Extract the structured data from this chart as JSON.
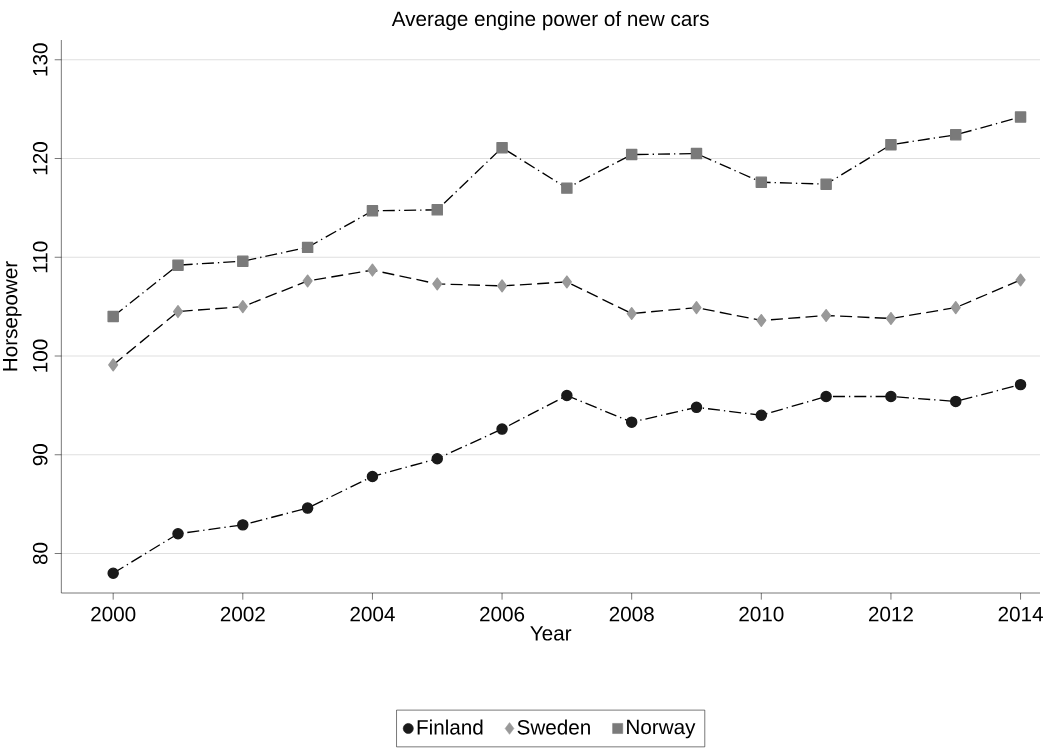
{
  "chart_data": {
    "type": "line",
    "title": "Average engine power of new cars",
    "xlabel": "Year",
    "ylabel": "Horsepower",
    "x": [
      2000,
      2001,
      2002,
      2003,
      2004,
      2005,
      2006,
      2007,
      2008,
      2009,
      2010,
      2011,
      2012,
      2013,
      2014
    ],
    "series": [
      {
        "name": "Finland",
        "color": "#1a1a1a",
        "marker": "circle",
        "line_style": "dashdot",
        "values": [
          78.0,
          82.0,
          82.9,
          84.6,
          87.8,
          89.6,
          92.6,
          96.0,
          93.3,
          94.8,
          94.0,
          95.9,
          95.9,
          95.4,
          97.1
        ]
      },
      {
        "name": "Sweden",
        "color": "#999999",
        "marker": "diamond",
        "line_style": "dashed",
        "values": [
          99.1,
          104.5,
          105.0,
          107.6,
          108.7,
          107.3,
          107.1,
          107.5,
          104.3,
          104.9,
          103.6,
          104.1,
          103.8,
          104.9,
          107.7
        ]
      },
      {
        "name": "Norway",
        "color": "#7a7a7a",
        "marker": "square",
        "line_style": "dashdot",
        "values": [
          104.0,
          109.2,
          109.6,
          111.0,
          114.7,
          114.8,
          121.1,
          117.0,
          120.4,
          120.5,
          117.6,
          117.4,
          121.4,
          122.4,
          124.2
        ]
      }
    ],
    "xlim": [
      1999.2,
      2014.3
    ],
    "ylim": [
      76,
      132
    ],
    "xticks": [
      2000,
      2002,
      2004,
      2006,
      2008,
      2010,
      2012,
      2014
    ],
    "yticks": [
      80,
      90,
      100,
      110,
      120,
      130
    ],
    "grid": "y",
    "legend": "bottom"
  }
}
